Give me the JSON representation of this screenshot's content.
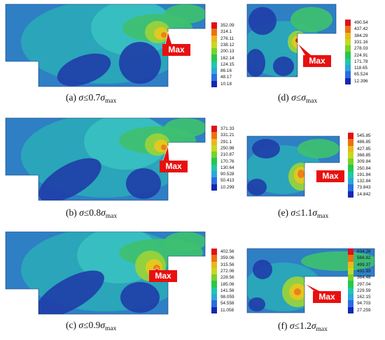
{
  "panels": [
    {
      "id": "a",
      "caption_prefix": "(a) ",
      "sigma": "σ",
      "relation": "≤0.7",
      "sigma2": "σ",
      "subscript": "max",
      "legend": [
        "352.09",
        "314.1",
        "276.11",
        "238.12",
        "200.13",
        "162.14",
        "124.15",
        "86.16",
        "48.17",
        "10.18"
      ],
      "max_label": "Max"
    },
    {
      "id": "b",
      "caption_prefix": "(b) ",
      "sigma": "σ",
      "relation": "≤0.8",
      "sigma2": "σ",
      "subscript": "max",
      "legend": [
        "371.33",
        "331.21",
        "291.1",
        "250.98",
        "210.87",
        "170.76",
        "130.64",
        "90.528",
        "50.413",
        "10.299"
      ],
      "max_label": "Max"
    },
    {
      "id": "c",
      "caption_prefix": "(c) ",
      "sigma": "σ",
      "relation": "≤0.9",
      "sigma2": "σ",
      "subscript": "max",
      "legend": [
        "402.56",
        "359.06",
        "315.56",
        "272.06",
        "228.56",
        "185.06",
        "141.56",
        "98.059",
        "54.558",
        "11.058"
      ],
      "max_label": "Max"
    },
    {
      "id": "d",
      "caption_prefix": "(d) ",
      "sigma": "σ",
      "relation": "≤",
      "sigma2": "σ",
      "subscript": "max",
      "legend": [
        "490.54",
        "437.42",
        "384.29",
        "331.16",
        "278.03",
        "224.91",
        "171.78",
        "118.65",
        "65.524",
        "12.396"
      ],
      "max_label": "Max"
    },
    {
      "id": "e",
      "caption_prefix": "(e) ",
      "sigma": "σ",
      "relation": "≤1.1",
      "sigma2": "σ",
      "subscript": "max",
      "legend": [
        "545.85",
        "486.85",
        "427.85",
        "368.85",
        "309.84",
        "250.84",
        "191.84",
        "132.84",
        "73.843",
        "14.842"
      ],
      "max_label": "Max"
    },
    {
      "id": "f",
      "caption_prefix": "(f) ",
      "sigma": "σ",
      "relation": "≤1.2",
      "sigma2": "σ",
      "subscript": "max",
      "legend": [
        "634.26",
        "566.82",
        "499.37",
        "431.93",
        "364.48",
        "297.04",
        "229.59",
        "162.15",
        "94.703",
        "27.259"
      ],
      "max_label": "Max"
    }
  ],
  "legend_colors": [
    "#e0101a",
    "#ee7010",
    "#eab81a",
    "#c8d81e",
    "#78d22a",
    "#26c84c",
    "#20c8a8",
    "#2aa8dc",
    "#2a6ee0",
    "#1428b4"
  ],
  "palette": {
    "deep": "#1f3fa8",
    "base": "#2f7fc4",
    "teal": "#2aa8b8",
    "cyan": "#38c0c0",
    "green": "#3ec070",
    "lime": "#9ad23a",
    "yellow": "#e6c81e",
    "orange": "#ee7a1a",
    "red": "#e01818",
    "max_red": "#e8100f"
  }
}
